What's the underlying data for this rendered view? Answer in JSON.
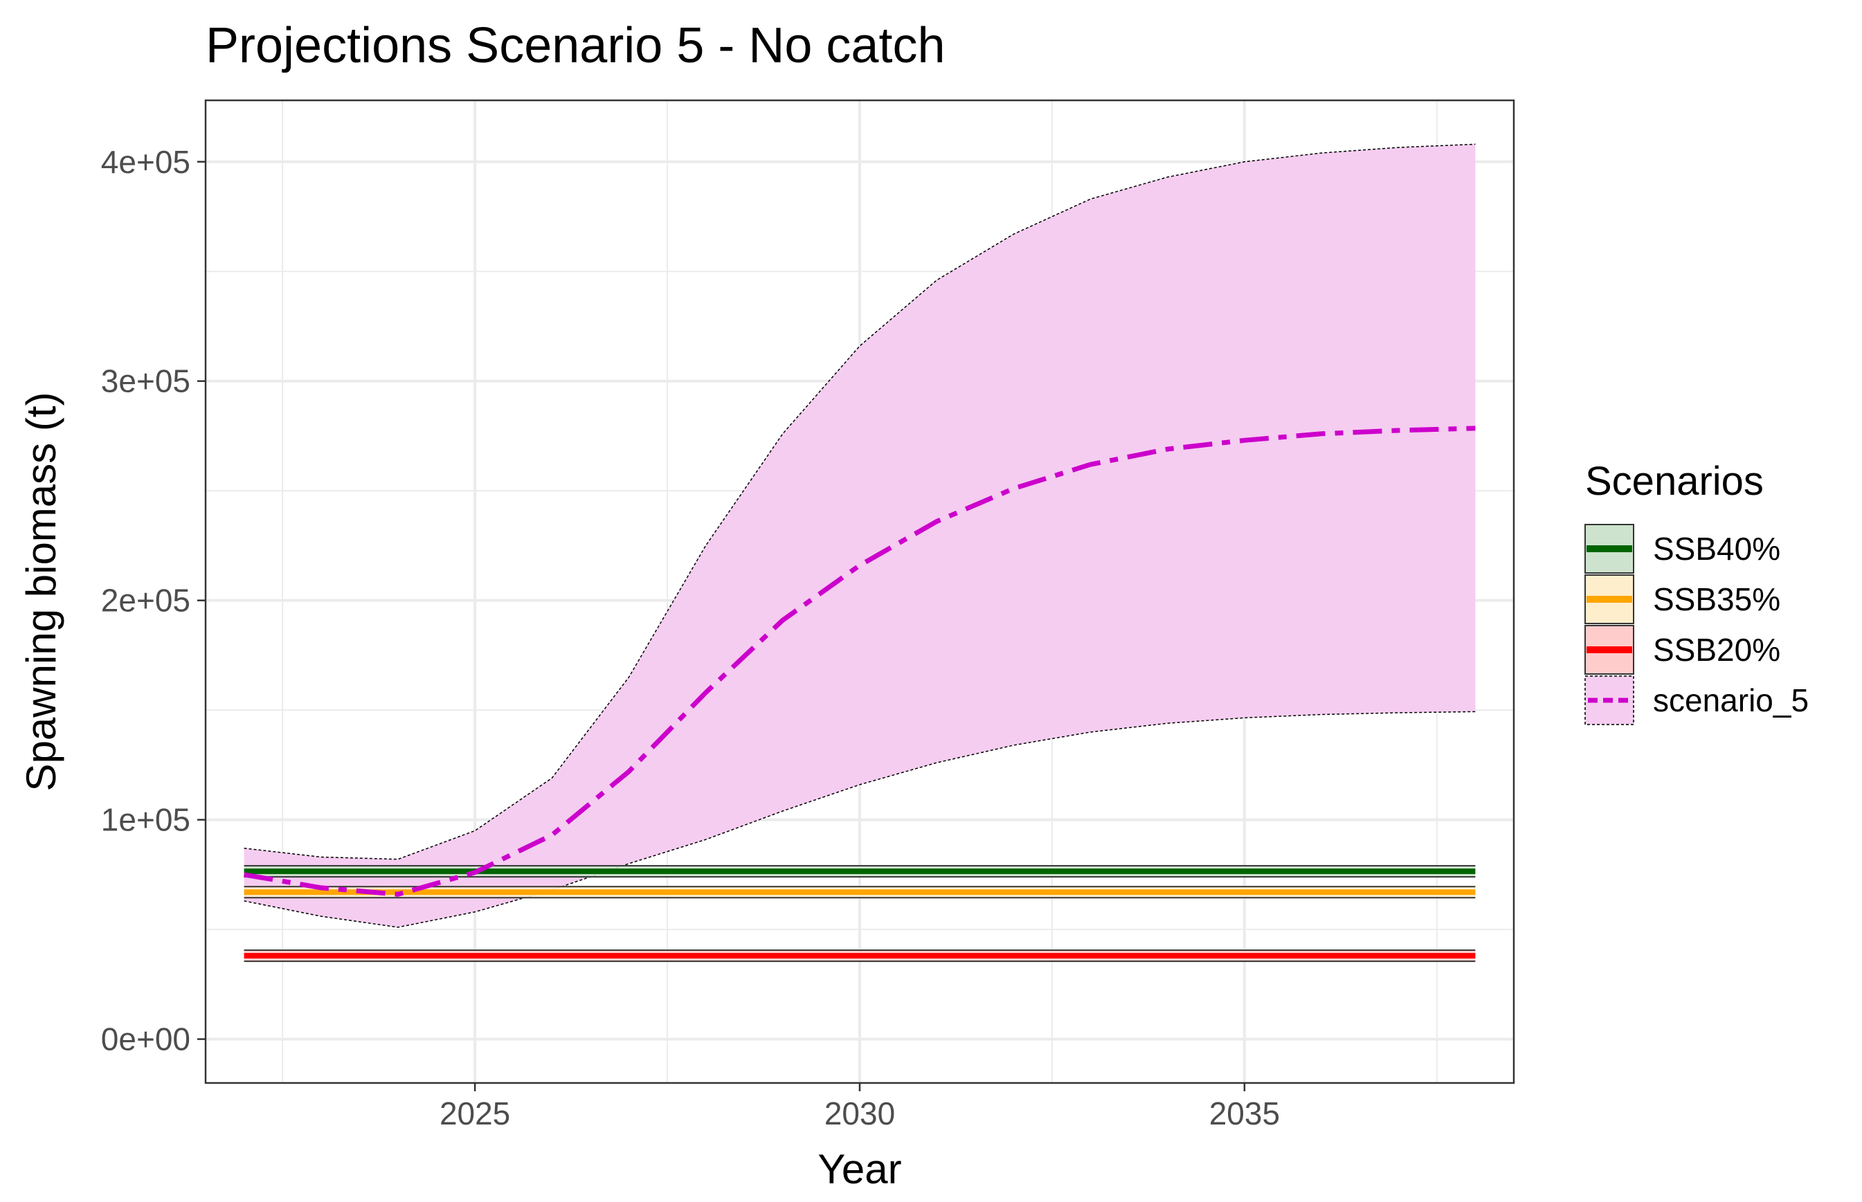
{
  "chart_data": {
    "type": "line",
    "title": "Projections Scenario 5 - No catch",
    "xlabel": "Year",
    "ylabel": "Spawning biomass (t)",
    "xlim": [
      2021.5,
      2038.5
    ],
    "ylim": [
      -20000,
      428000
    ],
    "x_ticks": [
      {
        "value": 2025,
        "label": "2025"
      },
      {
        "value": 2030,
        "label": "2030"
      },
      {
        "value": 2035,
        "label": "2035"
      }
    ],
    "x_minor": [
      2022.5,
      2027.5,
      2032.5,
      2037.5
    ],
    "y_ticks": [
      {
        "value": 0,
        "label": "0e+00"
      },
      {
        "value": 100000,
        "label": "1e+05"
      },
      {
        "value": 200000,
        "label": "2e+05"
      },
      {
        "value": 300000,
        "label": "3e+05"
      },
      {
        "value": 400000,
        "label": "4e+05"
      }
    ],
    "y_minor": [
      50000,
      150000,
      250000,
      350000
    ],
    "grid": true,
    "legend": {
      "title": "Scenarios",
      "placement": "right",
      "items": [
        {
          "label": "SSB40%",
          "line_color": "#006400",
          "fill_color": "#cde3cd",
          "style": "solid"
        },
        {
          "label": "SSB35%",
          "line_color": "#ffa500",
          "fill_color": "#ffeecc",
          "style": "solid"
        },
        {
          "label": "SSB20%",
          "line_color": "#ff0000",
          "fill_color": "#ffcccc",
          "style": "solid"
        },
        {
          "label": "scenario_5",
          "line_color": "#cc00cc",
          "fill_color": "#f5cdf0",
          "style": "dashed"
        }
      ]
    },
    "reference_lines": [
      {
        "label": "SSB40%",
        "value": 76500,
        "color": "#006400",
        "band_color": "#cde3cd"
      },
      {
        "label": "SSB35%",
        "value": 67000,
        "color": "#ffa500",
        "band_color": "#ffeecc"
      },
      {
        "label": "SSB20%",
        "value": 38000,
        "color": "#ff0000",
        "band_color": "#ffcccc"
      }
    ],
    "series": [
      {
        "name": "scenario_5",
        "color": "#cc00cc",
        "ribbon_color": "#f5cdf0",
        "x": [
          2022,
          2023,
          2024,
          2025,
          2026,
          2027,
          2028,
          2029,
          2030,
          2031,
          2032,
          2033,
          2034,
          2035,
          2036,
          2037,
          2038
        ],
        "values": [
          75000,
          69000,
          66000,
          76000,
          93000,
          122000,
          158000,
          191000,
          216000,
          236000,
          251000,
          262000,
          269000,
          273000,
          276000,
          277500,
          278500
        ],
        "lower": [
          63000,
          56000,
          51000,
          58000,
          68000,
          80000,
          91000,
          104000,
          116000,
          126000,
          134000,
          140000,
          144000,
          146500,
          148000,
          148800,
          149300
        ],
        "upper": [
          87000,
          83000,
          82000,
          95000,
          119000,
          165000,
          225000,
          276000,
          316000,
          346000,
          367000,
          383000,
          393000,
          400000,
          404000,
          406500,
          408000
        ]
      }
    ]
  }
}
